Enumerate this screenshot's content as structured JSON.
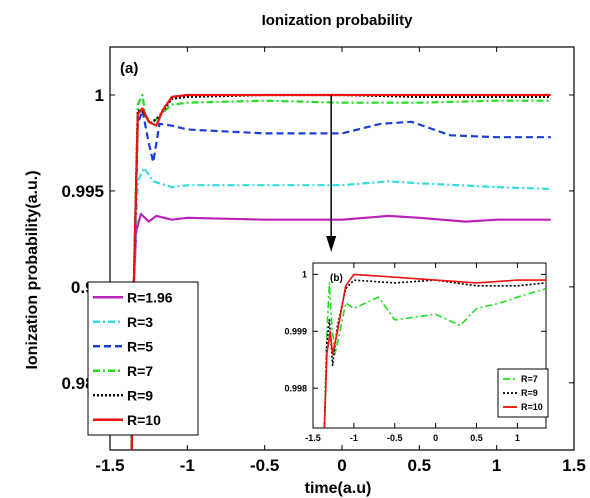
{
  "chart_data": [
    {
      "type": "line",
      "title": "Ionization probability",
      "panel_label": "(a)",
      "xlabel": "time(a.u)",
      "ylabel": "Ionization probability(a.u.)",
      "xlim": [
        -1.5,
        1.5
      ],
      "ylim": [
        0.9815,
        1.0025
      ],
      "xticks": [
        "-1.5",
        "-1",
        "-0.5",
        "0",
        "0.5",
        "1",
        "1.5"
      ],
      "yticks": [
        "0.985",
        "0.99",
        "0.995",
        "1"
      ],
      "ytick_values": [
        0.985,
        0.99,
        0.995,
        1
      ],
      "legend_position": "bottom-left",
      "series": [
        {
          "name": "R=1.96",
          "color": "#bb22bb",
          "dash": "solid",
          "points": [
            [
              -1.36,
              0.9815
            ],
            [
              -1.345,
              0.9905
            ],
            [
              -1.33,
              0.9929
            ],
            [
              -1.3,
              0.9938
            ],
            [
              -1.25,
              0.9934
            ],
            [
              -1.2,
              0.9937
            ],
            [
              -1.1,
              0.9935
            ],
            [
              -1.0,
              0.9936
            ],
            [
              -0.5,
              0.9935
            ],
            [
              0.0,
              0.9935
            ],
            [
              0.3,
              0.9937
            ],
            [
              0.5,
              0.9936
            ],
            [
              0.8,
              0.9934
            ],
            [
              1.0,
              0.9935
            ],
            [
              1.35,
              0.9935
            ]
          ]
        },
        {
          "name": "R=3",
          "color": "#33dddd",
          "dash": "dashdot",
          "points": [
            [
              -1.36,
              0.9815
            ],
            [
              -1.345,
              0.9905
            ],
            [
              -1.32,
              0.9955
            ],
            [
              -1.28,
              0.9962
            ],
            [
              -1.22,
              0.9955
            ],
            [
              -1.1,
              0.9952
            ],
            [
              -1.0,
              0.9953
            ],
            [
              -0.5,
              0.9953
            ],
            [
              0.0,
              0.9953
            ],
            [
              0.3,
              0.9955
            ],
            [
              0.5,
              0.9954
            ],
            [
              1.0,
              0.9952
            ],
            [
              1.35,
              0.9951
            ]
          ]
        },
        {
          "name": "R=5",
          "color": "#1a3fd6",
          "dash": "dashed",
          "points": [
            [
              -1.36,
              0.9815
            ],
            [
              -1.345,
              0.9905
            ],
            [
              -1.32,
              0.9985
            ],
            [
              -1.29,
              0.9992
            ],
            [
              -1.25,
              0.9975
            ],
            [
              -1.22,
              0.9965
            ],
            [
              -1.18,
              0.9985
            ],
            [
              -1.1,
              0.9984
            ],
            [
              -1.0,
              0.9982
            ],
            [
              -0.5,
              0.998
            ],
            [
              0.0,
              0.998
            ],
            [
              0.25,
              0.9985
            ],
            [
              0.45,
              0.9986
            ],
            [
              0.7,
              0.9979
            ],
            [
              1.0,
              0.9978
            ],
            [
              1.35,
              0.9978
            ]
          ]
        },
        {
          "name": "R=7",
          "color": "#22dd22",
          "dash": "dashdot",
          "points": [
            [
              -1.36,
              0.9815
            ],
            [
              -1.345,
              0.9905
            ],
            [
              -1.32,
              0.9995
            ],
            [
              -1.29,
              1.0
            ],
            [
              -1.27,
              0.9989
            ],
            [
              -1.23,
              0.9985
            ],
            [
              -1.17,
              0.999
            ],
            [
              -1.1,
              0.9995
            ],
            [
              -1.0,
              0.9996
            ],
            [
              -0.5,
              0.9997
            ],
            [
              0.0,
              0.9996
            ],
            [
              0.5,
              0.9996
            ],
            [
              1.0,
              0.9997
            ],
            [
              1.35,
              0.9997
            ]
          ]
        },
        {
          "name": "R=9",
          "color": "#000000",
          "dash": "dotted",
          "points": [
            [
              -1.36,
              0.9815
            ],
            [
              -1.345,
              0.9905
            ],
            [
              -1.32,
              0.9992
            ],
            [
              -1.28,
              0.9991
            ],
            [
              -1.24,
              0.9985
            ],
            [
              -1.18,
              0.9989
            ],
            [
              -1.1,
              0.9998
            ],
            [
              -1.0,
              0.9999
            ],
            [
              -0.5,
              1.0
            ],
            [
              0.0,
              1.0
            ],
            [
              0.5,
              0.9999
            ],
            [
              1.0,
              0.9999
            ],
            [
              1.35,
              0.9999
            ]
          ]
        },
        {
          "name": "R=10",
          "color": "#ee1111",
          "dash": "solid",
          "points": [
            [
              -1.36,
              0.9815
            ],
            [
              -1.345,
              0.9905
            ],
            [
              -1.32,
              0.999
            ],
            [
              -1.29,
              0.9993
            ],
            [
              -1.25,
              0.9986
            ],
            [
              -1.2,
              0.9984
            ],
            [
              -1.16,
              0.9992
            ],
            [
              -1.1,
              0.9999
            ],
            [
              -1.0,
              1.0
            ],
            [
              -0.5,
              1.0
            ],
            [
              0.0,
              1.0
            ],
            [
              0.5,
              1.0
            ],
            [
              1.0,
              1.0
            ],
            [
              1.35,
              1.0
            ]
          ]
        }
      ]
    },
    {
      "type": "line",
      "panel_label": "(b)",
      "xlim": [
        -1.5,
        1.35
      ],
      "ylim": [
        0.9973,
        1.0002
      ],
      "xticks": [
        "-1.5",
        "-1",
        "-0.5",
        "0",
        "0.5",
        "1"
      ],
      "yticks": [
        "0.998",
        "0.999",
        "1"
      ],
      "ytick_values": [
        0.998,
        0.999,
        1
      ],
      "legend_position": "bottom-right",
      "series": [
        {
          "name": "R=7",
          "color": "#22dd22",
          "dash": "dashdot",
          "points": [
            [
              -1.36,
              0.9973
            ],
            [
              -1.33,
              0.999
            ],
            [
              -1.3,
              0.99985
            ],
            [
              -1.27,
              0.9991
            ],
            [
              -1.23,
              0.9986
            ],
            [
              -1.17,
              0.999
            ],
            [
              -1.1,
              0.9995
            ],
            [
              -1.0,
              0.9994
            ],
            [
              -0.7,
              0.9996
            ],
            [
              -0.5,
              0.9992
            ],
            [
              0.0,
              0.9993
            ],
            [
              0.3,
              0.9991
            ],
            [
              0.5,
              0.9994
            ],
            [
              0.8,
              0.9995
            ],
            [
              1.0,
              0.9996
            ],
            [
              1.35,
              0.99975
            ]
          ]
        },
        {
          "name": "R=9",
          "color": "#000000",
          "dash": "dotted",
          "points": [
            [
              -1.36,
              0.9973
            ],
            [
              -1.33,
              0.9988
            ],
            [
              -1.3,
              0.9992
            ],
            [
              -1.26,
              0.9984
            ],
            [
              -1.2,
              0.9991
            ],
            [
              -1.1,
              0.99975
            ],
            [
              -1.0,
              0.9999
            ],
            [
              -0.5,
              0.99985
            ],
            [
              0.0,
              0.9999
            ],
            [
              0.5,
              0.9998
            ],
            [
              1.0,
              0.9998
            ],
            [
              1.35,
              0.99985
            ]
          ]
        },
        {
          "name": "R=10",
          "color": "#ee1111",
          "dash": "solid",
          "points": [
            [
              -1.36,
              0.9973
            ],
            [
              -1.33,
              0.9986
            ],
            [
              -1.29,
              0.999
            ],
            [
              -1.26,
              0.9986
            ],
            [
              -1.2,
              0.999
            ],
            [
              -1.1,
              0.9998
            ],
            [
              -1.0,
              1.0
            ],
            [
              -0.5,
              0.99995
            ],
            [
              0.0,
              0.9999
            ],
            [
              0.5,
              0.99985
            ],
            [
              1.0,
              0.9999
            ],
            [
              1.35,
              0.9999
            ]
          ]
        }
      ]
    }
  ]
}
